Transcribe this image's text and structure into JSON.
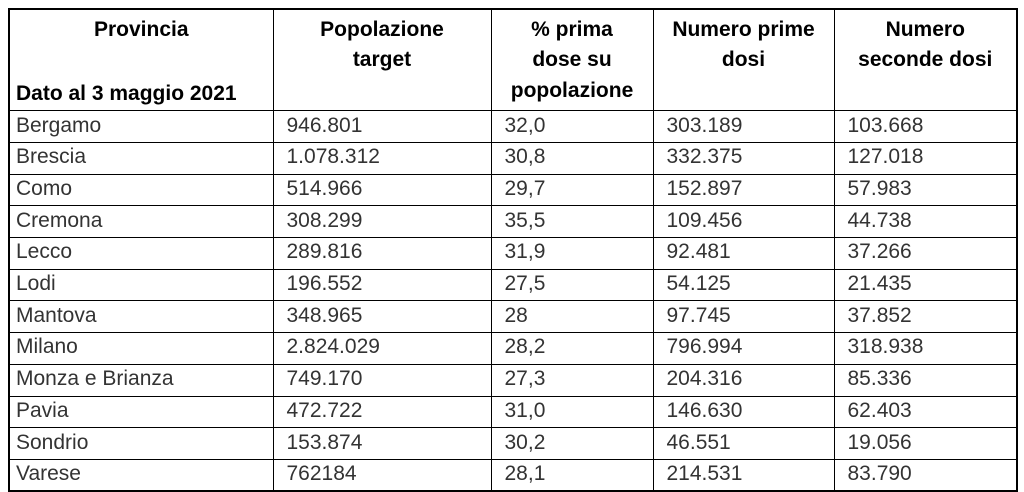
{
  "table": {
    "header": {
      "provincia_title": "Provincia",
      "date_note": "Dato al 3 maggio 2021",
      "columns": [
        "Popolazione target",
        "% prima dose su popolazione",
        "Numero prime dosi",
        "Numero seconde dosi"
      ]
    },
    "column_keys": [
      "provincia",
      "popolazione_target",
      "pct_prima_dose_su_popolazione",
      "numero_prime_dosi",
      "numero_seconde_dosi"
    ],
    "rows": [
      {
        "provincia": "Bergamo",
        "popolazione_target": "946.801",
        "pct_prima_dose_su_popolazione": "32,0",
        "numero_prime_dosi": "303.189",
        "numero_seconde_dosi": "103.668"
      },
      {
        "provincia": "Brescia",
        "popolazione_target": "1.078.312",
        "pct_prima_dose_su_popolazione": "30,8",
        "numero_prime_dosi": "332.375",
        "numero_seconde_dosi": "127.018"
      },
      {
        "provincia": "Como",
        "popolazione_target": "514.966",
        "pct_prima_dose_su_popolazione": "29,7",
        "numero_prime_dosi": "152.897",
        "numero_seconde_dosi": "57.983"
      },
      {
        "provincia": "Cremona",
        "popolazione_target": "308.299",
        "pct_prima_dose_su_popolazione": "35,5",
        "numero_prime_dosi": "109.456",
        "numero_seconde_dosi": "44.738"
      },
      {
        "provincia": "Lecco",
        "popolazione_target": "289.816",
        "pct_prima_dose_su_popolazione": "31,9",
        "numero_prime_dosi": "92.481",
        "numero_seconde_dosi": "37.266"
      },
      {
        "provincia": "Lodi",
        "popolazione_target": "196.552",
        "pct_prima_dose_su_popolazione": "27,5",
        "numero_prime_dosi": "54.125",
        "numero_seconde_dosi": "21.435"
      },
      {
        "provincia": "Mantova",
        "popolazione_target": "348.965",
        "pct_prima_dose_su_popolazione": "28",
        "numero_prime_dosi": "97.745",
        "numero_seconde_dosi": "37.852"
      },
      {
        "provincia": "Milano",
        "popolazione_target": "2.824.029",
        "pct_prima_dose_su_popolazione": "28,2",
        "numero_prime_dosi": "796.994",
        "numero_seconde_dosi": "318.938"
      },
      {
        "provincia": "Monza e Brianza",
        "popolazione_target": "749.170",
        "pct_prima_dose_su_popolazione": "27,3",
        "numero_prime_dosi": "204.316",
        "numero_seconde_dosi": "85.336"
      },
      {
        "provincia": "Pavia",
        "popolazione_target": "472.722",
        "pct_prima_dose_su_popolazione": "31,0",
        "numero_prime_dosi": "146.630",
        "numero_seconde_dosi": "62.403"
      },
      {
        "provincia": "Sondrio",
        "popolazione_target": "153.874",
        "pct_prima_dose_su_popolazione": "30,2",
        "numero_prime_dosi": "46.551",
        "numero_seconde_dosi": "19.056"
      },
      {
        "provincia": "Varese",
        "popolazione_target": "762184",
        "pct_prima_dose_su_popolazione": "28,1",
        "numero_prime_dosi": "214.531",
        "numero_seconde_dosi": "83.790"
      }
    ]
  }
}
